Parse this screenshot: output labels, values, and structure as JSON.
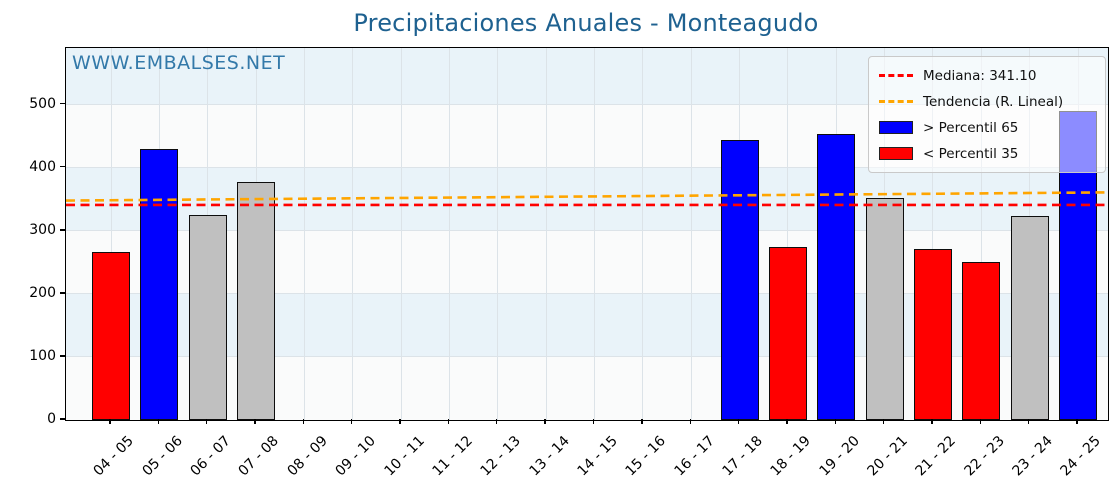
{
  "page": {
    "watermark": "WWW.EMBALSES.NET"
  },
  "chart_data": {
    "type": "bar",
    "title": "Precipitaciones Anuales - Monteagudo",
    "xlabel": "",
    "ylabel": "",
    "categories": [
      "04 - 05",
      "05 - 06",
      "06 - 07",
      "07 - 08",
      "08 - 09",
      "09 - 10",
      "10 - 11",
      "11 - 12",
      "12 - 13",
      "13 - 14",
      "14 - 15",
      "15 - 16",
      "16 - 17",
      "17 - 18",
      "18 - 19",
      "19 - 20",
      "20 - 21",
      "21 - 22",
      "22 - 23",
      "23 - 24",
      "24 - 25"
    ],
    "values": [
      267,
      430,
      325,
      378,
      null,
      null,
      null,
      null,
      null,
      null,
      null,
      null,
      null,
      444,
      274,
      454,
      352,
      271,
      250,
      323,
      490
    ],
    "classes": [
      "below_p35",
      "above_p65",
      "mid",
      "mid",
      null,
      null,
      null,
      null,
      null,
      null,
      null,
      null,
      null,
      "above_p65",
      "below_p35",
      "above_p65",
      "mid",
      "below_p35",
      "below_p35",
      "mid",
      "above_p65"
    ],
    "class_colors": {
      "above_p65": "#0000ff",
      "below_p35": "#ff0000",
      "mid": "#c0c0c0"
    },
    "median": 341.1,
    "trend_line": {
      "start_value": 348,
      "end_value": 361
    },
    "line_colors": {
      "median": "#ff0000",
      "trend": "#ffa500"
    },
    "ylim": [
      0,
      590
    ],
    "yticks": [
      0,
      100,
      200,
      300,
      400,
      500
    ],
    "grid": true,
    "bands": {
      "color": "#e9f3f9",
      "ranges": [
        [
          100,
          200
        ],
        [
          300,
          400
        ],
        [
          500,
          590
        ]
      ]
    },
    "legend": {
      "position": "upper right",
      "items": [
        {
          "label": "Mediana: 341.10",
          "swatch": "dashed-line",
          "color": "#ff0000"
        },
        {
          "label": "Tendencia (R. Lineal)",
          "swatch": "dashed-line",
          "color": "#ffa500"
        },
        {
          "label": "> Percentil 65",
          "swatch": "rect",
          "color": "#0000ff"
        },
        {
          "label": "< Percentil 35",
          "swatch": "rect",
          "color": "#ff0000"
        }
      ]
    }
  }
}
